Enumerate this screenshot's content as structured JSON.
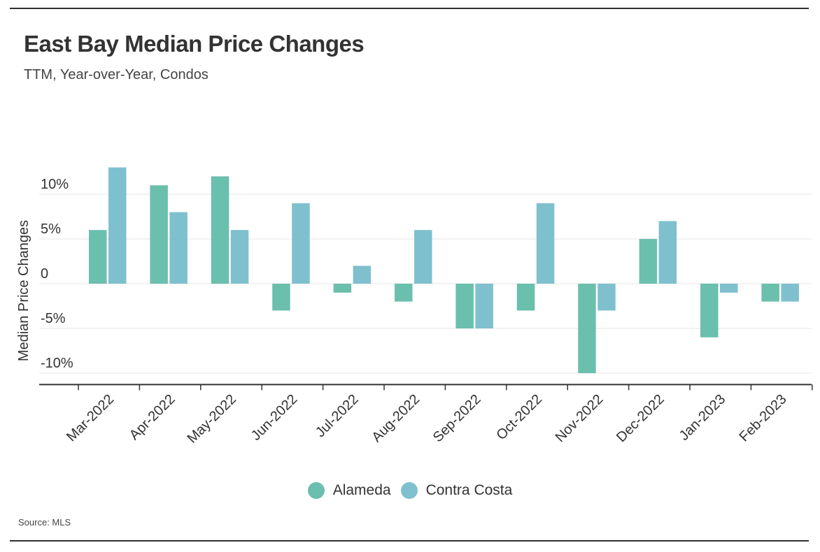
{
  "chart_data": {
    "type": "bar",
    "title": "East Bay Median Price Changes",
    "subtitle": "TTM, Year-over-Year, Condos",
    "ylabel": "Median Price Changes",
    "xlabel": "",
    "ylim": [
      -10.5,
      13.5
    ],
    "yticks": [
      10,
      5,
      0,
      -5,
      -10
    ],
    "ytick_labels": [
      "10%",
      "5%",
      "0",
      "-5%",
      "-10%"
    ],
    "categories": [
      "Mar-2022",
      "Apr-2022",
      "May-2022",
      "Jun-2022",
      "Jul-2022",
      "Aug-2022",
      "Sep-2022",
      "Oct-2022",
      "Nov-2022",
      "Dec-2022",
      "Jan-2023",
      "Feb-2023"
    ],
    "series": [
      {
        "name": "Alameda",
        "color": "#6bbfad",
        "values": [
          6,
          11,
          12,
          -3,
          -1,
          -2,
          -5,
          -3,
          -10,
          5,
          -6,
          -2
        ]
      },
      {
        "name": "Contra Costa",
        "color": "#7fc0ce",
        "values": [
          13,
          8,
          6,
          9,
          2,
          6,
          -5,
          9,
          -3,
          7,
          -1,
          -2
        ]
      }
    ],
    "grid": true,
    "legend_position": "bottom-center",
    "source": "Source: MLS"
  }
}
